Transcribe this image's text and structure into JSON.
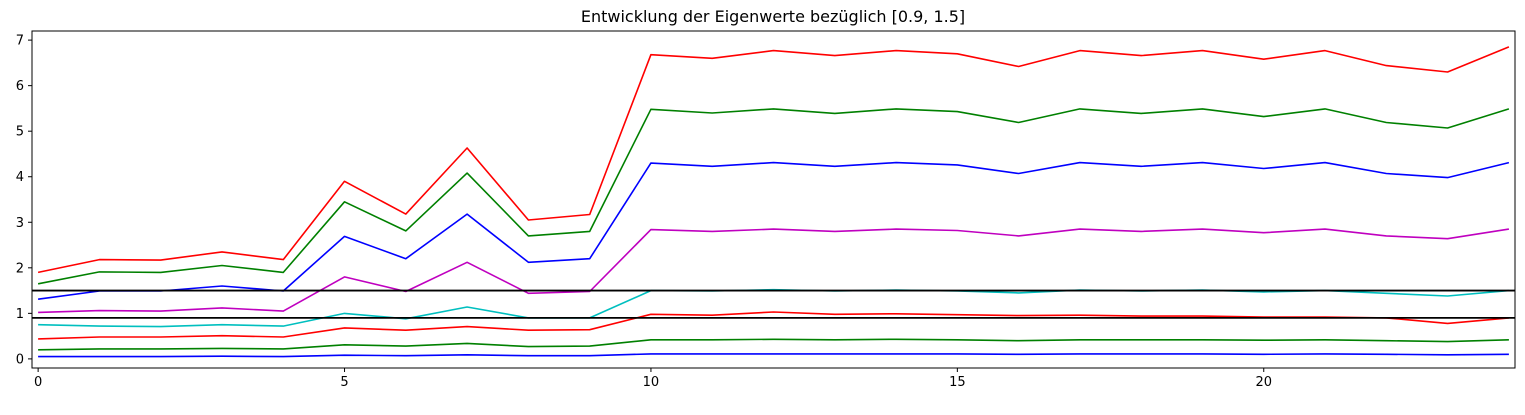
{
  "chart_data": {
    "type": "line",
    "title": "Entwicklung der Eigenwerte bezüglich [0.9, 1.5]",
    "xlabel": "",
    "ylabel": "",
    "xlim": [
      -0.1,
      24.1
    ],
    "ylim": [
      -0.2,
      7.2
    ],
    "xticks": [
      0,
      5,
      10,
      15,
      20
    ],
    "yticks": [
      0,
      1,
      2,
      3,
      4,
      5,
      6,
      7
    ],
    "grid": false,
    "legend": "none",
    "x": [
      0,
      1,
      2,
      3,
      4,
      5,
      6,
      7,
      8,
      9,
      10,
      11,
      12,
      13,
      14,
      15,
      16,
      17,
      18,
      19,
      20,
      21,
      22,
      23,
      24
    ],
    "series": [
      {
        "color": "#ff0000",
        "values": [
          1.9,
          2.18,
          2.17,
          2.35,
          2.18,
          3.9,
          3.18,
          4.63,
          3.05,
          3.17,
          6.68,
          6.6,
          6.77,
          6.66,
          6.77,
          6.7,
          6.42,
          6.77,
          6.66,
          6.77,
          6.58,
          6.77,
          6.44,
          6.3,
          6.85
        ]
      },
      {
        "color": "#008000",
        "values": [
          1.65,
          1.91,
          1.9,
          2.05,
          1.9,
          3.45,
          2.81,
          4.08,
          2.7,
          2.8,
          5.48,
          5.4,
          5.49,
          5.39,
          5.49,
          5.43,
          5.19,
          5.49,
          5.39,
          5.49,
          5.32,
          5.49,
          5.19,
          5.07,
          5.49
        ]
      },
      {
        "color": "#0000ff",
        "values": [
          1.31,
          1.49,
          1.49,
          1.6,
          1.49,
          2.69,
          2.2,
          3.18,
          2.12,
          2.2,
          4.3,
          4.23,
          4.31,
          4.23,
          4.31,
          4.26,
          4.07,
          4.31,
          4.23,
          4.31,
          4.18,
          4.31,
          4.07,
          3.98,
          4.31
        ]
      },
      {
        "color": "#bf00bf",
        "values": [
          1.02,
          1.06,
          1.05,
          1.12,
          1.05,
          1.8,
          1.48,
          2.12,
          1.44,
          1.48,
          2.84,
          2.8,
          2.85,
          2.8,
          2.85,
          2.82,
          2.7,
          2.85,
          2.8,
          2.85,
          2.77,
          2.85,
          2.7,
          2.64,
          2.85
        ]
      },
      {
        "color": "#00bfbf",
        "values": [
          0.75,
          0.72,
          0.71,
          0.75,
          0.72,
          1.0,
          0.88,
          1.14,
          0.9,
          0.9,
          1.5,
          1.49,
          1.52,
          1.49,
          1.51,
          1.49,
          1.45,
          1.51,
          1.49,
          1.51,
          1.47,
          1.5,
          1.44,
          1.38,
          1.5
        ]
      },
      {
        "color": "#ff0000",
        "values": [
          0.44,
          0.48,
          0.48,
          0.51,
          0.48,
          0.68,
          0.63,
          0.71,
          0.63,
          0.64,
          0.98,
          0.96,
          1.03,
          0.98,
          0.99,
          0.97,
          0.95,
          0.96,
          0.94,
          0.94,
          0.92,
          0.92,
          0.9,
          0.78,
          0.9
        ]
      },
      {
        "color": "#008000",
        "values": [
          0.2,
          0.22,
          0.22,
          0.23,
          0.22,
          0.31,
          0.28,
          0.34,
          0.27,
          0.28,
          0.42,
          0.42,
          0.43,
          0.42,
          0.43,
          0.42,
          0.4,
          0.42,
          0.42,
          0.42,
          0.41,
          0.42,
          0.4,
          0.38,
          0.42
        ]
      },
      {
        "color": "#0000ff",
        "values": [
          0.05,
          0.05,
          0.05,
          0.06,
          0.05,
          0.08,
          0.07,
          0.09,
          0.07,
          0.07,
          0.11,
          0.11,
          0.11,
          0.11,
          0.11,
          0.11,
          0.1,
          0.11,
          0.11,
          0.11,
          0.1,
          0.11,
          0.1,
          0.09,
          0.1
        ]
      }
    ],
    "hlines": [
      {
        "y": 1.5,
        "color": "#000000"
      },
      {
        "y": 0.9,
        "color": "#000000"
      }
    ]
  }
}
